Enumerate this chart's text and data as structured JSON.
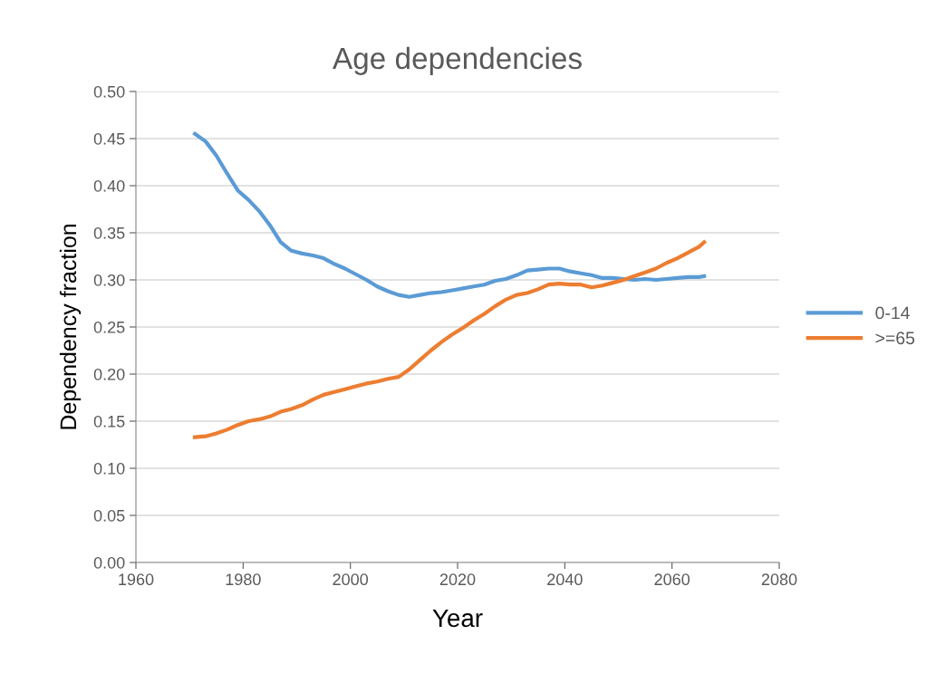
{
  "chart_data": {
    "type": "line",
    "title": "Age dependencies",
    "xlabel": "Year",
    "ylabel": "Dependency fraction",
    "x": [
      1971,
      1973,
      1975,
      1977,
      1979,
      1981,
      1983,
      1985,
      1987,
      1989,
      1991,
      1993,
      1995,
      1997,
      1999,
      2001,
      2003,
      2005,
      2007,
      2009,
      2011,
      2013,
      2015,
      2017,
      2019,
      2021,
      2023,
      2025,
      2027,
      2029,
      2031,
      2033,
      2035,
      2037,
      2039,
      2041,
      2043,
      2045,
      2047,
      2049,
      2051,
      2053,
      2055,
      2057,
      2059,
      2061,
      2063,
      2065,
      2066
    ],
    "series": [
      {
        "name": "0-14",
        "color": "#5b9bd5",
        "values": [
          0.455,
          0.447,
          0.432,
          0.413,
          0.395,
          0.385,
          0.373,
          0.358,
          0.34,
          0.331,
          0.328,
          0.326,
          0.323,
          0.317,
          0.312,
          0.306,
          0.3,
          0.293,
          0.288,
          0.284,
          0.282,
          0.284,
          0.286,
          0.287,
          0.289,
          0.291,
          0.293,
          0.295,
          0.299,
          0.301,
          0.305,
          0.31,
          0.311,
          0.312,
          0.312,
          0.309,
          0.307,
          0.305,
          0.302,
          0.302,
          0.301,
          0.3,
          0.301,
          0.3,
          0.301,
          0.302,
          0.303,
          0.303,
          0.304
        ]
      },
      {
        "name": ">=65",
        "color": "#ed7d31",
        "values": [
          0.133,
          0.134,
          0.137,
          0.141,
          0.146,
          0.15,
          0.152,
          0.155,
          0.16,
          0.163,
          0.167,
          0.173,
          0.178,
          0.181,
          0.184,
          0.187,
          0.19,
          0.192,
          0.195,
          0.197,
          0.205,
          0.215,
          0.225,
          0.234,
          0.242,
          0.249,
          0.257,
          0.264,
          0.272,
          0.279,
          0.284,
          0.286,
          0.29,
          0.295,
          0.296,
          0.295,
          0.295,
          0.292,
          0.294,
          0.297,
          0.3,
          0.304,
          0.308,
          0.312,
          0.318,
          0.323,
          0.329,
          0.335,
          0.34
        ]
      }
    ],
    "xlim": [
      1960,
      2080
    ],
    "xticks": [
      1960,
      1980,
      2000,
      2020,
      2040,
      2060,
      2080
    ],
    "ylim": [
      0,
      0.5
    ],
    "yticks": [
      {
        "value": 0,
        "label": "0.00"
      },
      {
        "value": 0.05,
        "label": "0.05"
      },
      {
        "value": 0.1,
        "label": "0.10"
      },
      {
        "value": 0.15,
        "label": "0.15"
      },
      {
        "value": 0.2,
        "label": "0.20"
      },
      {
        "value": 0.25,
        "label": "0.25"
      },
      {
        "value": 0.3,
        "label": "0.30"
      },
      {
        "value": 0.35,
        "label": "0.35"
      },
      {
        "value": 0.4,
        "label": "0.40"
      },
      {
        "value": 0.45,
        "label": "0.45"
      },
      {
        "value": 0.5,
        "label": "0.50"
      }
    ],
    "grid": "y",
    "legend": "right",
    "marker": "none",
    "line_style": "solid"
  }
}
